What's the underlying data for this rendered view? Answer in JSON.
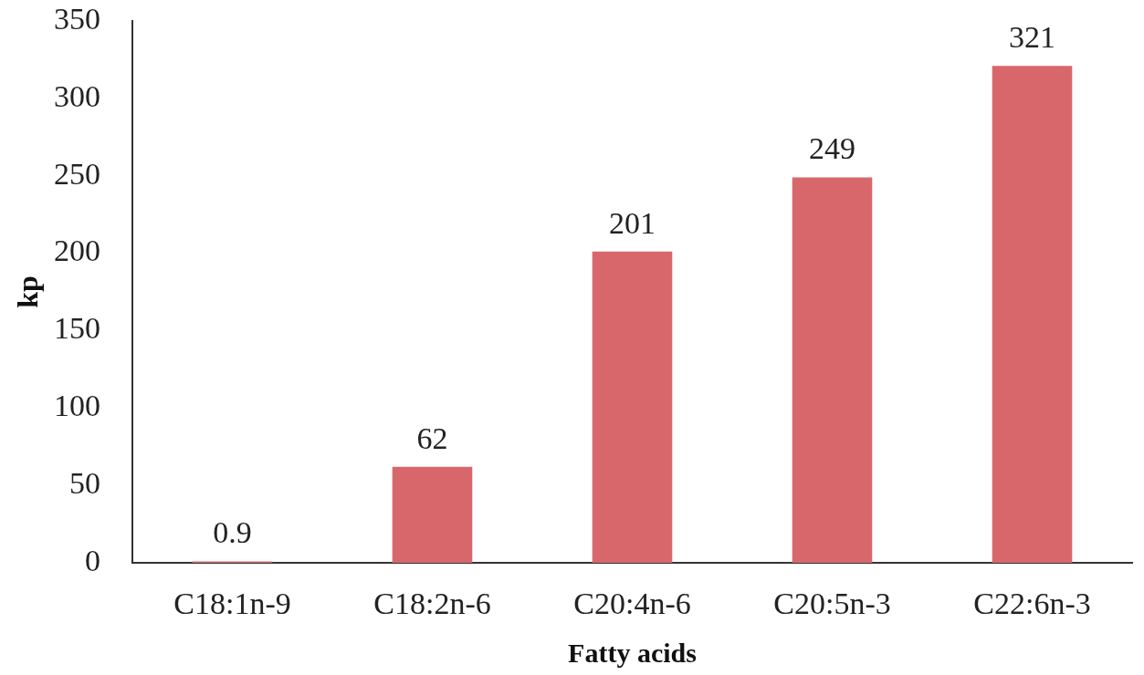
{
  "chart_data": {
    "type": "bar",
    "xlabel": "Fatty acids",
    "ylabel": "kp",
    "categories": [
      "C18:1n-9",
      "C18:2n-6",
      "C20:4n-6",
      "C20:5n-3",
      "C22:6n-3"
    ],
    "values": [
      0.9,
      62,
      201,
      249,
      321
    ],
    "color": "#d8676c",
    "ylim": [
      0,
      350
    ],
    "yticks": [
      0,
      50,
      100,
      150,
      200,
      250,
      300,
      350
    ],
    "data_labels": true
  }
}
